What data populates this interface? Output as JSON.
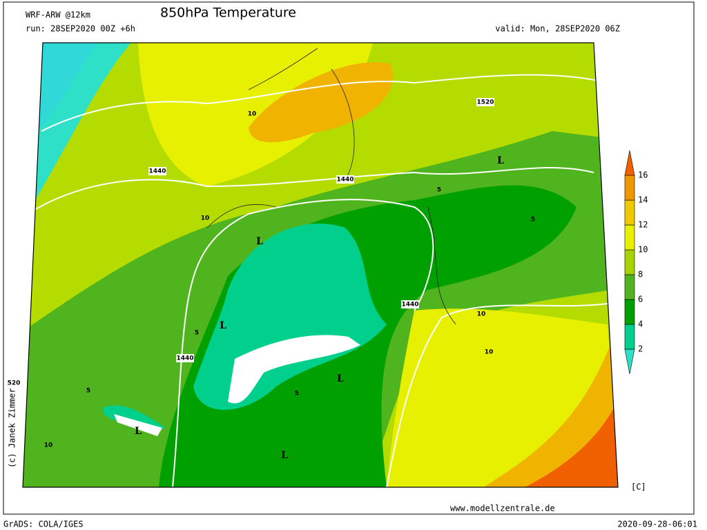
{
  "header": {
    "model": "WRF-ARW @12km",
    "title": "850hPa Temperature",
    "run": "run: 28SEP2020 00Z +6h",
    "valid": "valid: Mon, 28SEP2020 06Z"
  },
  "colorbar": {
    "ticks": [
      2,
      4,
      6,
      8,
      10,
      12,
      14,
      16
    ],
    "colors": [
      "#2ee0c8",
      "#00d08c",
      "#00a000",
      "#50b41e",
      "#a8d200",
      "#e6f000",
      "#f0c800",
      "#f09600",
      "#f06000"
    ],
    "unit": "[C]"
  },
  "map": {
    "labels": [
      "1440",
      "1440",
      "1440",
      "1440",
      "1520",
      "520",
      "L",
      "L",
      "L",
      "L",
      "L",
      "L",
      "10",
      "10",
      "10",
      "10",
      "10",
      "5",
      "5",
      "5",
      "5",
      "5"
    ]
  },
  "footer": {
    "credit": "(c) Janek Zimmer",
    "site": "www.modellzentrale.de",
    "software": "GrADS: COLA/IGES",
    "timestamp": "2020-09-28-06:01"
  }
}
